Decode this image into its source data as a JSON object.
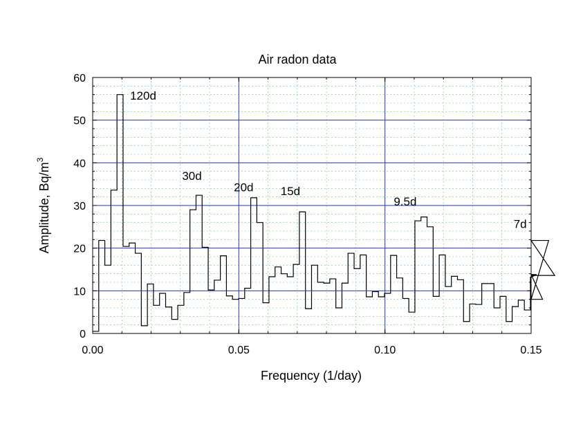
{
  "chart_data": {
    "type": "line",
    "style": "step",
    "title": "Air radon data",
    "xlabel": "Frequency (1/day)",
    "ylabel": "Amplitude,  Bq/m",
    "ylabel_superscript": "3",
    "xlim": [
      0.0,
      0.15
    ],
    "ylim": [
      0,
      60
    ],
    "xticks": [
      0.0,
      0.05,
      0.1,
      0.15
    ],
    "xtick_labels": [
      "0.00",
      "0.05",
      "0.10",
      "0.15"
    ],
    "yticks": [
      0,
      10,
      20,
      30,
      40,
      50,
      60
    ],
    "ytick_labels": [
      "0",
      "10",
      "20",
      "30",
      "40",
      "50",
      "60"
    ],
    "grid": {
      "major_x": [
        0.05,
        0.1
      ],
      "major_y": [
        10,
        20,
        30,
        40,
        50
      ],
      "minor_x_step": 0.01,
      "minor_y_step": 2
    },
    "colors": {
      "line": "#000000",
      "major_grid": "#2233cc",
      "minor_grid": "#66cc66"
    },
    "bin_width": 0.00208,
    "series": [
      {
        "x_start": 0.0,
        "values": [
          0.5,
          21.8,
          16.0,
          33.6,
          56.0,
          20.4,
          21.2,
          18.8,
          1.8,
          11.6,
          6.6,
          9.4,
          6.2,
          3.3,
          6.6,
          9.6,
          29.0,
          32.4,
          20.2,
          10.2,
          12.5,
          18.2,
          8.8,
          8.0,
          8.2,
          10.6,
          31.8,
          26.0,
          7.2,
          13.3,
          15.6,
          14.0,
          13.3,
          16.2,
          28.5,
          5.8,
          16.0,
          12.0,
          11.8,
          12.8,
          6.0,
          11.8,
          18.8,
          15.2,
          18.4,
          8.6,
          9.8,
          8.6,
          9.4,
          18.3,
          13.0,
          8.2,
          5.0,
          26.4,
          27.3,
          25.0,
          8.7,
          18.4,
          11.0,
          13.4,
          12.6,
          2.8,
          6.9,
          6.8,
          11.7,
          11.7,
          6.0,
          8.7,
          2.8,
          6.3,
          7.8,
          5.5,
          13.2,
          13.8,
          8.0,
          21.8,
          13.6
        ]
      }
    ],
    "annotations": [
      {
        "text": "120d",
        "x": 0.0128,
        "y": 54.8
      },
      {
        "text": "30d",
        "x": 0.0306,
        "y": 36.0
      },
      {
        "text": "20d",
        "x": 0.0483,
        "y": 33.3
      },
      {
        "text": "15d",
        "x": 0.0643,
        "y": 32.4
      },
      {
        "text": "9.5d",
        "x": 0.103,
        "y": 30.0
      },
      {
        "text": "7d",
        "x": 0.144,
        "y": 24.7
      }
    ]
  }
}
